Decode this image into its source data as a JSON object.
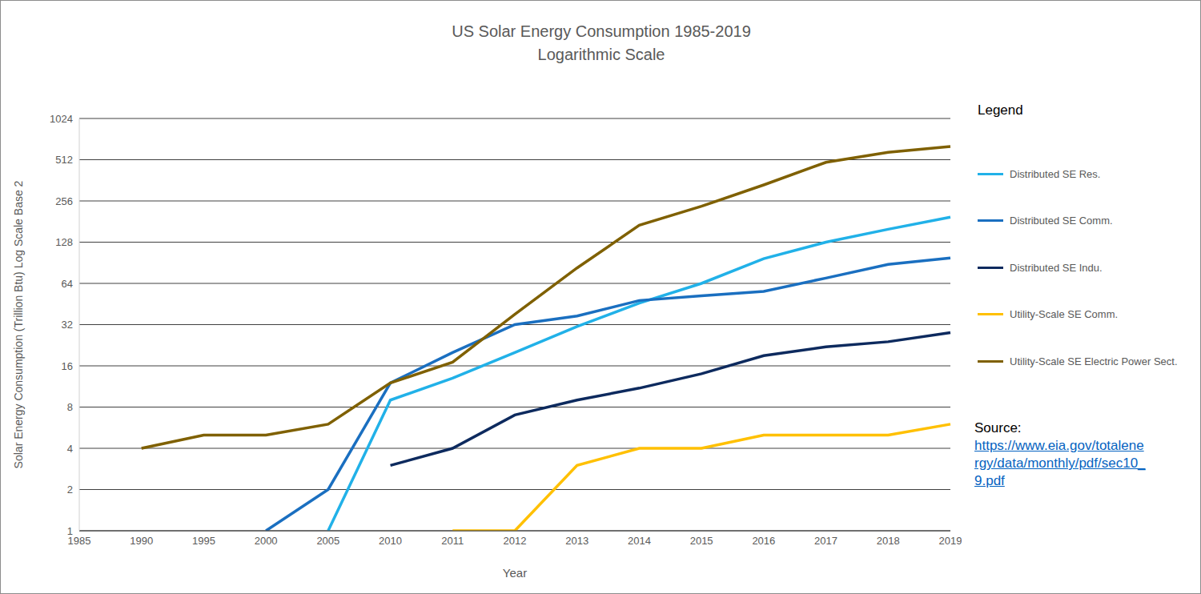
{
  "chart_data": {
    "type": "line",
    "title": "US Solar Energy Consumption 1985-2019",
    "subtitle": "Logarithmic Scale",
    "x_label": "Year",
    "y_label": "Solar Energy Consumption (Trillion Btu) Log Scale Base 2",
    "legend_title": "Legend",
    "annotations": [
      "Source:",
      "https://www.eia.gov/totalenergy/data/monthly/pdf/sec10_9.pdf"
    ],
    "categories": [
      "1985",
      "1990",
      "1995",
      "2000",
      "2005",
      "2010",
      "2011",
      "2012",
      "2013",
      "2014",
      "2015",
      "2016",
      "2017",
      "2018",
      "2019"
    ],
    "series": [
      {
        "name": "Distributed SE Res.",
        "color": "#21b1e8",
        "values": [
          null,
          null,
          null,
          null,
          1,
          9,
          13,
          20,
          31,
          46,
          64,
          97,
          128,
          159,
          195
        ]
      },
      {
        "name": "Distributed SE Comm.",
        "color": "#1a6fc0",
        "values": [
          null,
          null,
          null,
          1,
          2,
          12,
          20,
          32,
          37,
          48,
          52,
          56,
          70,
          88,
          98
        ]
      },
      {
        "name": "Distributed SE Indu.",
        "color": "#0d2a5e",
        "values": [
          null,
          null,
          null,
          null,
          null,
          3,
          4,
          7,
          9,
          11,
          14,
          19,
          22,
          24,
          28
        ]
      },
      {
        "name": "Utility-Scale SE Comm.",
        "color": "#ffc000",
        "values": [
          null,
          null,
          null,
          null,
          null,
          null,
          1,
          1,
          3,
          4,
          4,
          5,
          5,
          5,
          6
        ]
      },
      {
        "name": "Utility-Scale SE Electric Power Sect.",
        "color": "#7f6000",
        "values": [
          null,
          4,
          5,
          5,
          6,
          12,
          17,
          38,
          83,
          170,
          234,
          335,
          490,
          580,
          640
        ]
      }
    ],
    "ylim": [
      1,
      1024
    ],
    "yticks": [
      1,
      2,
      4,
      8,
      16,
      32,
      64,
      128,
      256,
      512,
      1024
    ],
    "log": "y",
    "grid": true,
    "legend": "right"
  }
}
